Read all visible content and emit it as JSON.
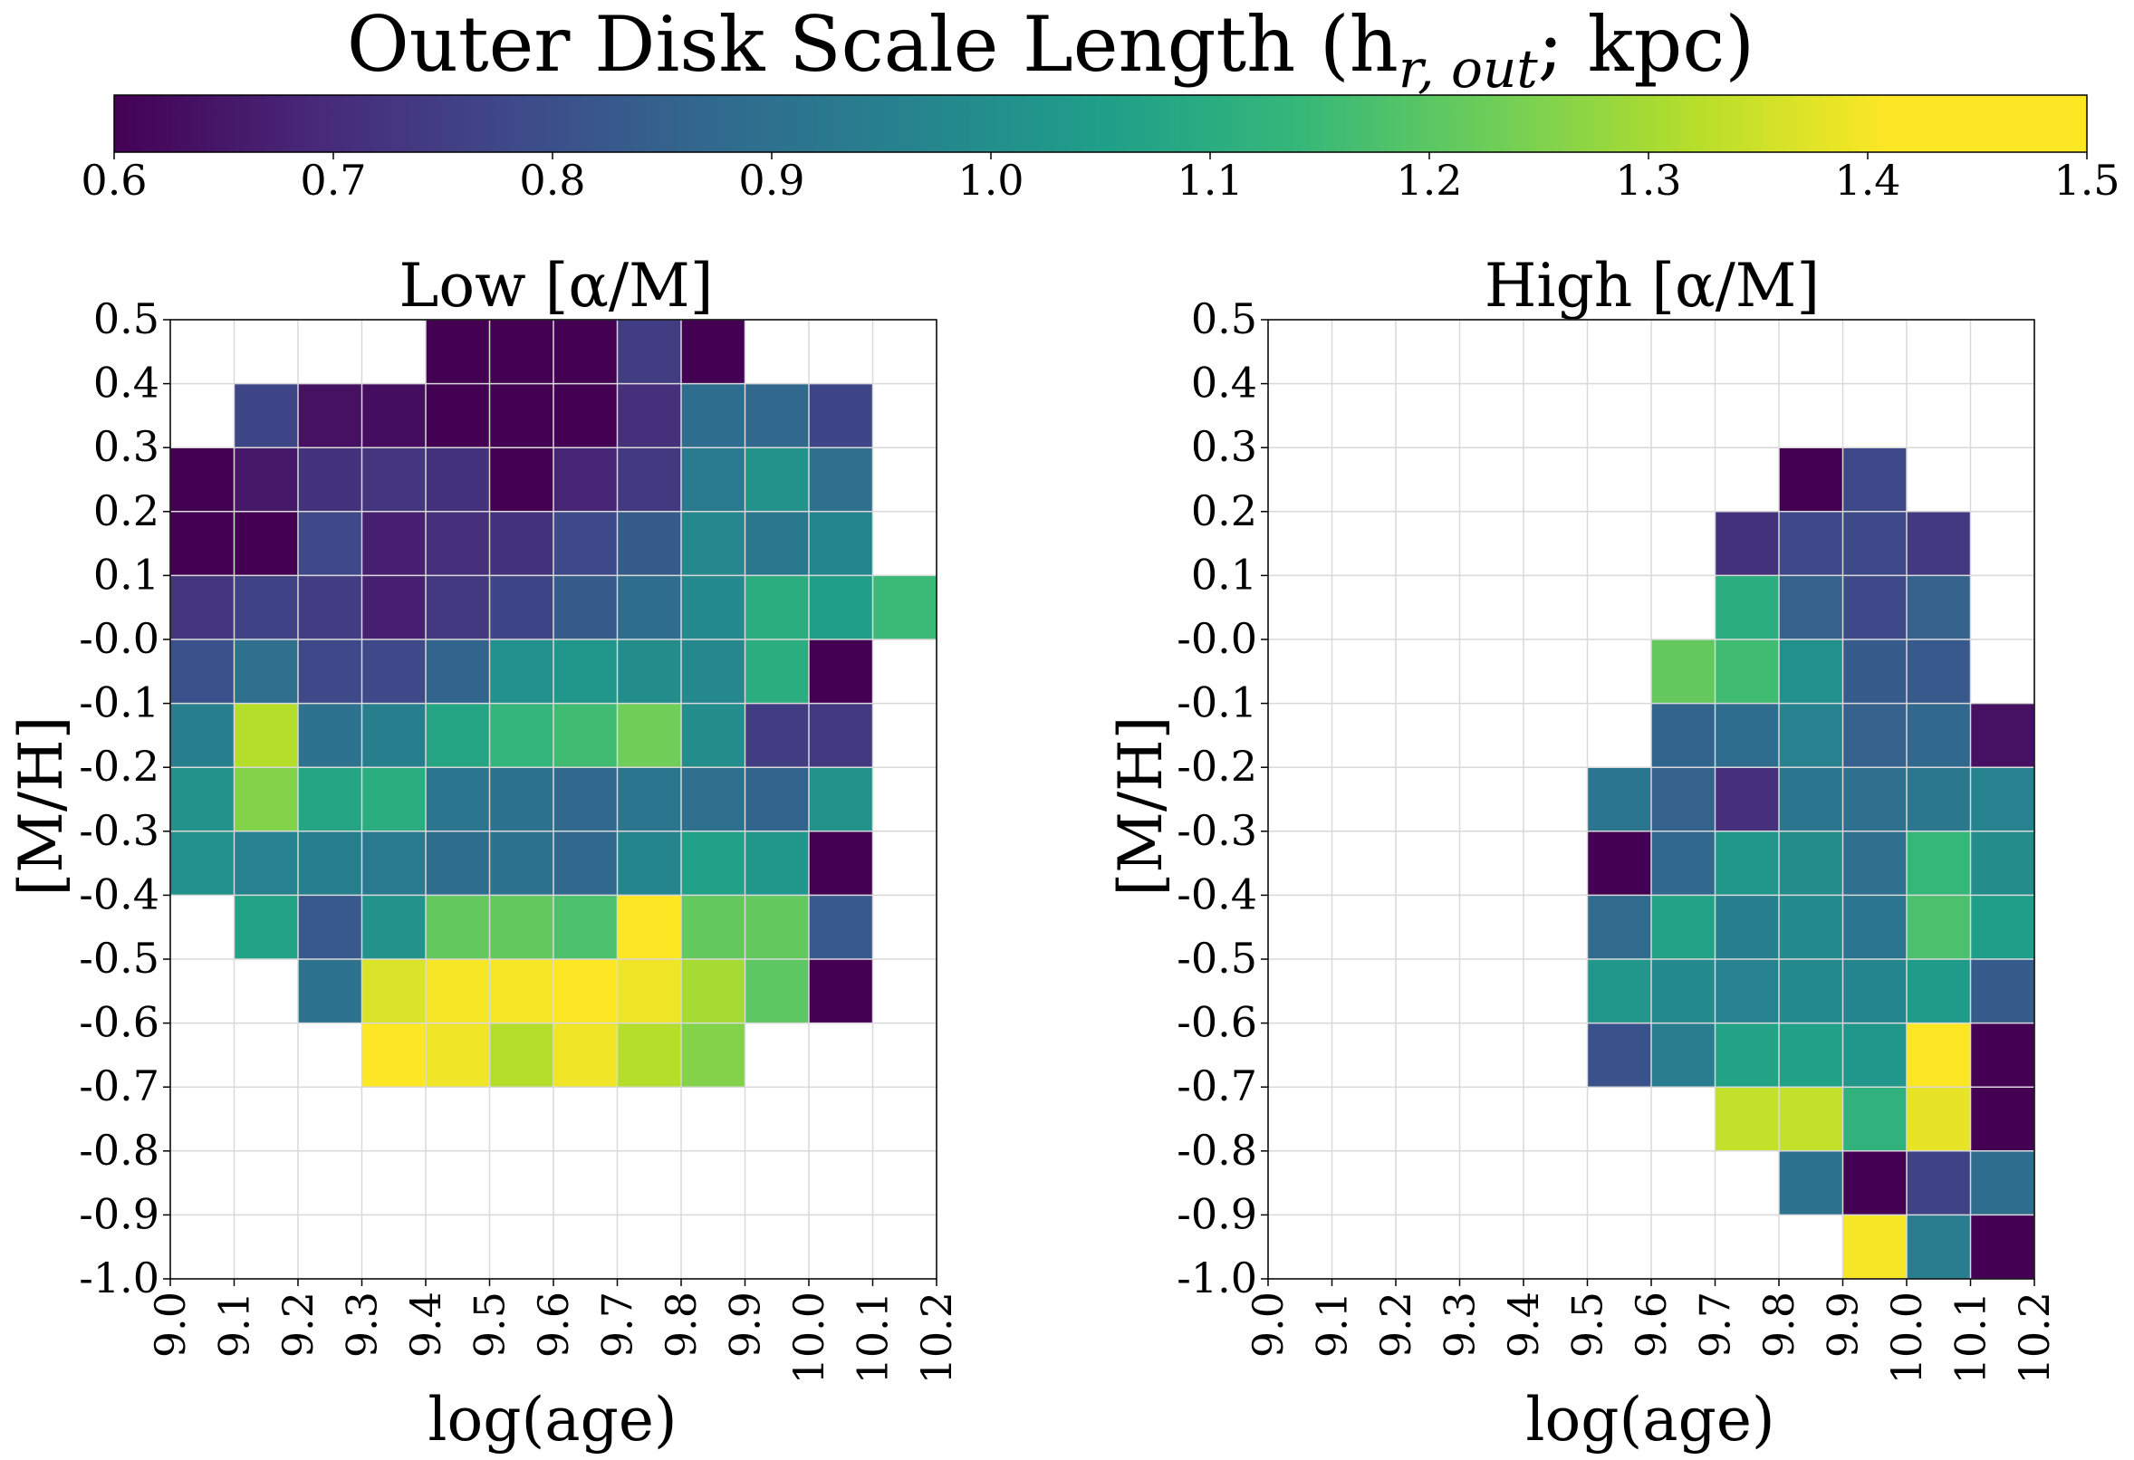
{
  "colorbar": {
    "title_main": "Outer Disk Scale Length (h",
    "title_sub": "r, out",
    "title_tail": "; kpc)",
    "vmin": 0.6,
    "vmax": 1.5,
    "ticks": [
      "0.6",
      "0.7",
      "0.8",
      "0.9",
      "1.0",
      "1.1",
      "1.2",
      "1.3",
      "1.4",
      "1.5"
    ],
    "colormap": "viridis"
  },
  "chart_data": [
    {
      "type": "heatmap",
      "title": "Low [α/M]",
      "xlabel": "log(age)",
      "ylabel": "[M/H]",
      "xlim": [
        9.0,
        10.2
      ],
      "ylim": [
        -1.0,
        0.5
      ],
      "x_ticks": [
        "9.0",
        "9.1",
        "9.2",
        "9.3",
        "9.4",
        "9.5",
        "9.6",
        "9.7",
        "9.8",
        "9.9",
        "10.0",
        "10.1",
        "10.2"
      ],
      "y_ticks": [
        "0.5",
        "0.4",
        "0.3",
        "0.2",
        "0.1",
        "-0.0",
        "-0.1",
        "-0.2",
        "-0.3",
        "-0.4",
        "-0.5",
        "-0.6",
        "-0.7",
        "-0.8",
        "-0.9",
        "-1.0"
      ],
      "grid": true,
      "x_bin_edges": [
        9.0,
        9.1,
        9.2,
        9.3,
        9.4,
        9.5,
        9.6,
        9.7,
        9.8,
        9.9,
        10.0,
        10.1,
        10.2
      ],
      "y_bin_edges_top_to_bottom": [
        0.5,
        0.4,
        0.3,
        0.2,
        0.1,
        0.0,
        -0.1,
        -0.2,
        -0.3,
        -0.4,
        -0.5,
        -0.6,
        -0.7,
        -0.8,
        -0.9,
        -1.0
      ],
      "values": [
        [
          null,
          null,
          null,
          null,
          0.6,
          0.6,
          0.6,
          0.76,
          0.6,
          null,
          null,
          null
        ],
        [
          null,
          0.79,
          0.64,
          0.63,
          0.6,
          0.6,
          0.6,
          0.72,
          0.92,
          0.9,
          0.79,
          null
        ],
        [
          0.6,
          0.66,
          0.73,
          0.74,
          0.73,
          0.6,
          0.69,
          0.75,
          0.97,
          1.06,
          0.93,
          null
        ],
        [
          0.6,
          0.6,
          0.8,
          0.68,
          0.72,
          0.73,
          0.8,
          0.86,
          1.02,
          0.96,
          1.01,
          null
        ],
        [
          0.74,
          0.78,
          0.76,
          0.68,
          0.75,
          0.79,
          0.86,
          0.92,
          1.03,
          1.16,
          1.1,
          1.21
        ],
        [
          0.83,
          0.93,
          0.8,
          0.8,
          0.89,
          1.05,
          1.07,
          1.04,
          1.02,
          1.16,
          0.6,
          null
        ],
        [
          0.99,
          1.4,
          0.94,
          0.99,
          1.13,
          1.19,
          1.22,
          1.3,
          1.04,
          0.76,
          0.75,
          null
        ],
        [
          1.06,
          1.33,
          1.13,
          1.16,
          0.95,
          0.94,
          0.9,
          0.95,
          0.93,
          0.89,
          1.06,
          null
        ],
        [
          1.05,
          1.0,
          0.99,
          0.97,
          0.92,
          0.94,
          0.9,
          1.01,
          1.11,
          1.07,
          0.6,
          null
        ],
        [
          null,
          1.12,
          0.85,
          1.06,
          1.28,
          1.28,
          1.24,
          1.5,
          1.28,
          1.28,
          0.85,
          null
        ],
        [
          null,
          null,
          0.94,
          1.45,
          1.49,
          1.49,
          1.5,
          1.48,
          1.38,
          1.27,
          0.6,
          null
        ],
        [
          null,
          null,
          null,
          1.5,
          1.48,
          1.4,
          1.48,
          1.4,
          1.33,
          null,
          null,
          null
        ],
        [
          null,
          null,
          null,
          null,
          null,
          null,
          null,
          null,
          null,
          null,
          null,
          null
        ],
        [
          null,
          null,
          null,
          null,
          null,
          null,
          null,
          null,
          null,
          null,
          null,
          null
        ],
        [
          null,
          null,
          null,
          null,
          null,
          null,
          null,
          null,
          null,
          null,
          null,
          null
        ]
      ]
    },
    {
      "type": "heatmap",
      "title": "High [α/M]",
      "xlabel": "log(age)",
      "ylabel": "[M/H]",
      "xlim": [
        9.0,
        10.2
      ],
      "ylim": [
        -1.0,
        0.5
      ],
      "x_ticks": [
        "9.0",
        "9.1",
        "9.2",
        "9.3",
        "9.4",
        "9.5",
        "9.6",
        "9.7",
        "9.8",
        "9.9",
        "10.0",
        "10.1",
        "10.2"
      ],
      "y_ticks": [
        "0.5",
        "0.4",
        "0.3",
        "0.2",
        "0.1",
        "-0.0",
        "-0.1",
        "-0.2",
        "-0.3",
        "-0.4",
        "-0.5",
        "-0.6",
        "-0.7",
        "-0.8",
        "-0.9",
        "-1.0"
      ],
      "grid": true,
      "x_bin_edges": [
        9.0,
        9.1,
        9.2,
        9.3,
        9.4,
        9.5,
        9.6,
        9.7,
        9.8,
        9.9,
        10.0,
        10.1,
        10.2
      ],
      "y_bin_edges_top_to_bottom": [
        0.5,
        0.4,
        0.3,
        0.2,
        0.1,
        0.0,
        -0.1,
        -0.2,
        -0.3,
        -0.4,
        -0.5,
        -0.6,
        -0.7,
        -0.8,
        -0.9,
        -1.0
      ],
      "values": [
        [
          null,
          null,
          null,
          null,
          null,
          null,
          null,
          null,
          null,
          null,
          null,
          null
        ],
        [
          null,
          null,
          null,
          null,
          null,
          null,
          null,
          null,
          null,
          null,
          null,
          null
        ],
        [
          null,
          null,
          null,
          null,
          null,
          null,
          null,
          null,
          0.6,
          0.8,
          null,
          null
        ],
        [
          null,
          null,
          null,
          null,
          null,
          null,
          null,
          0.73,
          0.8,
          0.8,
          0.75,
          null
        ],
        [
          null,
          null,
          null,
          null,
          null,
          null,
          null,
          1.16,
          0.88,
          0.8,
          0.88,
          null
        ],
        [
          null,
          null,
          null,
          null,
          null,
          null,
          1.28,
          1.22,
          1.05,
          0.86,
          0.85,
          null
        ],
        [
          null,
          null,
          null,
          null,
          null,
          null,
          0.89,
          0.92,
          1.0,
          0.88,
          0.9,
          0.64
        ],
        [
          null,
          null,
          null,
          null,
          null,
          0.95,
          0.88,
          0.72,
          0.95,
          0.93,
          0.96,
          1.0
        ],
        [
          null,
          null,
          null,
          null,
          null,
          0.6,
          0.9,
          1.07,
          1.04,
          0.93,
          1.2,
          1.04
        ],
        [
          null,
          null,
          null,
          null,
          null,
          0.91,
          1.12,
          0.99,
          1.03,
          0.95,
          1.24,
          1.1
        ],
        [
          null,
          null,
          null,
          null,
          null,
          1.07,
          1.03,
          1.0,
          1.03,
          1.01,
          1.09,
          0.86
        ],
        [
          null,
          null,
          null,
          null,
          null,
          0.83,
          0.98,
          1.12,
          1.11,
          1.07,
          1.5,
          0.6
        ],
        [
          null,
          null,
          null,
          null,
          null,
          null,
          null,
          1.42,
          1.42,
          1.18,
          1.47,
          0.6
        ],
        [
          null,
          null,
          null,
          null,
          null,
          null,
          null,
          null,
          0.94,
          0.6,
          0.78,
          0.92
        ],
        [
          null,
          null,
          null,
          null,
          null,
          null,
          null,
          null,
          null,
          1.49,
          0.98,
          0.6
        ]
      ]
    }
  ]
}
